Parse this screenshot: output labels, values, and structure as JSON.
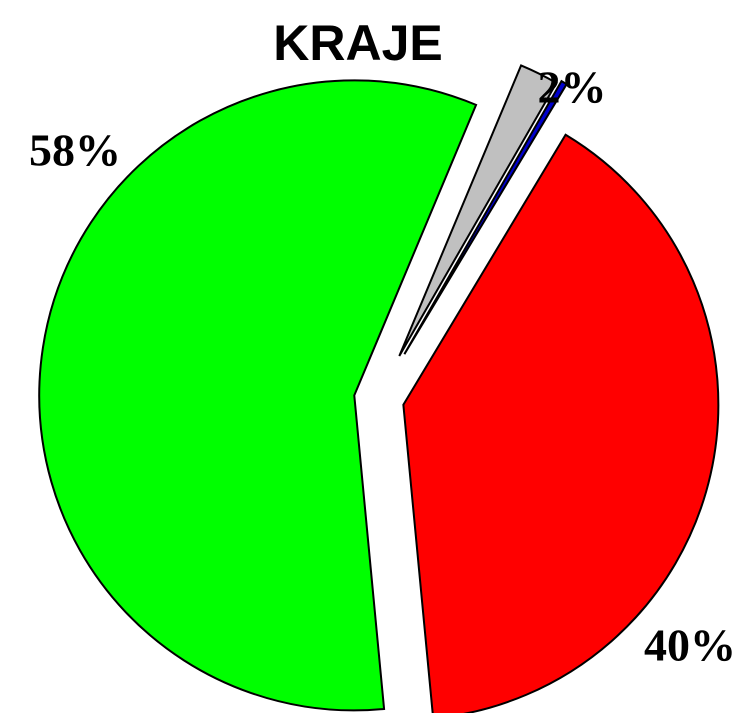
{
  "chart_data": {
    "type": "pie",
    "title": "KRAJE",
    "categories": [
      null,
      null,
      null,
      null
    ],
    "values": [
      40,
      58,
      2,
      0.3
    ],
    "value_labels": [
      "40%",
      "58%",
      "2%",
      null
    ],
    "colors": [
      "#ff0000",
      "#00ff00",
      "#c0c0c0",
      "#0000cc"
    ]
  }
}
